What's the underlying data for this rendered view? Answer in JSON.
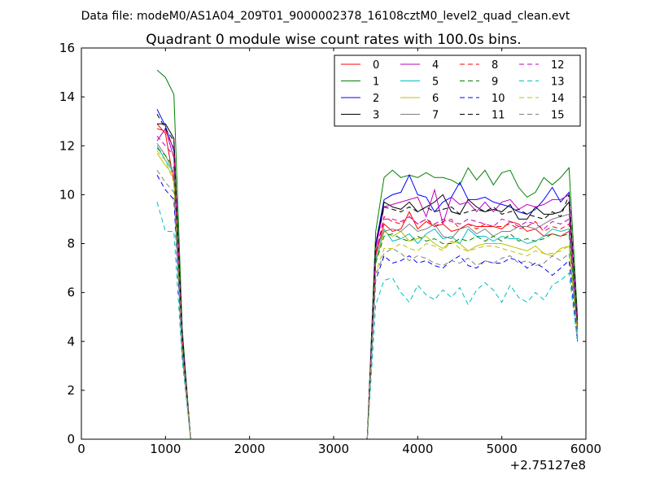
{
  "figure": {
    "suptitle": "Data file: modeM0/AS1A04_209T01_9000002378_16108cztM0_level2_quad_clean.evt",
    "x_offset_label": "+2.75127e8"
  },
  "chart_data": {
    "type": "line",
    "title": "Quadrant 0 module wise count rates with 100.0s bins.",
    "xlabel": "",
    "ylabel": "",
    "xlim": [
      0,
      6000
    ],
    "ylim": [
      0,
      16
    ],
    "xticks": [
      0,
      1000,
      2000,
      3000,
      4000,
      5000,
      6000
    ],
    "yticks": [
      0,
      2,
      4,
      6,
      8,
      10,
      12,
      14,
      16
    ],
    "grid": false,
    "legend": "top-right",
    "x": [
      900,
      1000,
      1100,
      1200,
      1300,
      1400,
      1500,
      1600,
      1700,
      1800,
      1900,
      2000,
      2100,
      2200,
      2300,
      2400,
      2500,
      2600,
      2700,
      2800,
      2900,
      3000,
      3100,
      3200,
      3300,
      3400,
      3500,
      3600,
      3700,
      3800,
      3900,
      4000,
      4100,
      4200,
      4300,
      4400,
      4500,
      4600,
      4700,
      4800,
      4900,
      5000,
      5100,
      5200,
      5300,
      5400,
      5500,
      5600,
      5700,
      5800,
      5900
    ],
    "series": [
      {
        "name": "0",
        "color": "#ff0000",
        "dash": "solid",
        "values": [
          12.9,
          12.5,
          10.5,
          4.0,
          0,
          0,
          0,
          0,
          0,
          0,
          0,
          0,
          0,
          0,
          0,
          0,
          0,
          0,
          0,
          0,
          0,
          0,
          0,
          0,
          0,
          0,
          7.5,
          8.8,
          8.5,
          8.6,
          9.3,
          8.6,
          8.9,
          8.7,
          8.8,
          8.5,
          8.6,
          8.8,
          8.7,
          8.7,
          8.7,
          8.6,
          8.9,
          8.8,
          8.5,
          8.6,
          8.3,
          8.4,
          8.3,
          8.5,
          4.8
        ]
      },
      {
        "name": "1",
        "color": "#008000",
        "dash": "solid",
        "values": [
          15.1,
          14.8,
          14.1,
          4.5,
          0,
          0,
          0,
          0,
          0,
          0,
          0,
          0,
          0,
          0,
          0,
          0,
          0,
          0,
          0,
          0,
          0,
          0,
          0,
          0,
          0,
          0,
          8.5,
          10.7,
          11.0,
          10.7,
          10.8,
          10.7,
          10.9,
          10.7,
          10.7,
          10.6,
          10.4,
          11.1,
          10.6,
          11.0,
          10.4,
          10.9,
          11.0,
          10.3,
          9.9,
          10.1,
          10.7,
          10.4,
          10.7,
          11.1,
          5.0
        ]
      },
      {
        "name": "2",
        "color": "#0000ff",
        "dash": "solid",
        "values": [
          13.5,
          12.8,
          11.8,
          4.2,
          0,
          0,
          0,
          0,
          0,
          0,
          0,
          0,
          0,
          0,
          0,
          0,
          0,
          0,
          0,
          0,
          0,
          0,
          0,
          0,
          0,
          0,
          8.0,
          9.8,
          10.0,
          10.1,
          10.8,
          10.0,
          9.9,
          9.3,
          9.7,
          9.9,
          10.5,
          9.8,
          9.8,
          9.9,
          9.7,
          9.6,
          9.5,
          9.3,
          9.2,
          9.4,
          9.8,
          10.3,
          9.7,
          10.1,
          4.0
        ]
      },
      {
        "name": "3",
        "color": "#000000",
        "dash": "solid",
        "values": [
          12.9,
          12.9,
          12.3,
          4.0,
          0,
          0,
          0,
          0,
          0,
          0,
          0,
          0,
          0,
          0,
          0,
          0,
          0,
          0,
          0,
          0,
          0,
          0,
          0,
          0,
          0,
          0,
          7.8,
          9.7,
          9.5,
          9.4,
          9.7,
          9.3,
          9.5,
          9.7,
          10.0,
          9.3,
          9.2,
          9.8,
          9.5,
          9.3,
          9.4,
          9.3,
          9.6,
          9.0,
          9.0,
          9.5,
          9.2,
          9.2,
          9.3,
          9.7,
          4.5
        ]
      },
      {
        "name": "4",
        "color": "#bf00bf",
        "dash": "solid",
        "values": [
          12.2,
          12.7,
          11.5,
          4.0,
          0,
          0,
          0,
          0,
          0,
          0,
          0,
          0,
          0,
          0,
          0,
          0,
          0,
          0,
          0,
          0,
          0,
          0,
          0,
          0,
          0,
          0,
          7.8,
          9.5,
          9.6,
          9.7,
          9.8,
          9.9,
          9.1,
          10.2,
          8.8,
          9.9,
          9.6,
          9.7,
          9.3,
          9.7,
          9.3,
          9.7,
          9.8,
          9.4,
          9.6,
          9.5,
          9.6,
          9.8,
          9.8,
          10.0,
          4.6
        ]
      },
      {
        "name": "5",
        "color": "#00bfbf",
        "dash": "solid",
        "values": [
          12.0,
          11.4,
          10.9,
          3.8,
          0,
          0,
          0,
          0,
          0,
          0,
          0,
          0,
          0,
          0,
          0,
          0,
          0,
          0,
          0,
          0,
          0,
          0,
          0,
          0,
          0,
          0,
          7.3,
          8.6,
          8.1,
          8.2,
          8.4,
          8.0,
          8.4,
          8.6,
          8.2,
          8.3,
          8.0,
          8.6,
          8.3,
          8.3,
          8.1,
          8.3,
          8.2,
          8.2,
          8.0,
          8.1,
          8.3,
          8.6,
          8.5,
          8.6,
          4.5
        ]
      },
      {
        "name": "6",
        "color": "#bfbf00",
        "dash": "solid",
        "values": [
          11.7,
          11.2,
          10.8,
          3.7,
          0,
          0,
          0,
          0,
          0,
          0,
          0,
          0,
          0,
          0,
          0,
          0,
          0,
          0,
          0,
          0,
          0,
          0,
          0,
          0,
          0,
          0,
          7.2,
          8.5,
          8.3,
          8.5,
          8.1,
          8.2,
          8.3,
          8.0,
          7.8,
          8.1,
          8.0,
          7.7,
          7.9,
          8.0,
          8.0,
          8.0,
          7.9,
          7.8,
          7.7,
          7.9,
          7.6,
          7.5,
          7.8,
          7.9,
          4.2
        ]
      },
      {
        "name": "7",
        "color": "#808080",
        "dash": "solid",
        "values": [
          12.1,
          11.6,
          10.9,
          3.8,
          0,
          0,
          0,
          0,
          0,
          0,
          0,
          0,
          0,
          0,
          0,
          0,
          0,
          0,
          0,
          0,
          0,
          0,
          0,
          0,
          0,
          0,
          7.8,
          8.5,
          8.6,
          8.5,
          8.8,
          8.5,
          8.6,
          8.8,
          8.3,
          8.2,
          8.6,
          8.7,
          8.4,
          8.6,
          8.3,
          8.5,
          8.5,
          8.7,
          8.7,
          8.6,
          8.8,
          9.0,
          9.1,
          9.2,
          4.6
        ]
      },
      {
        "name": "8",
        "color": "#ff0000",
        "dash": "dash",
        "values": [
          12.7,
          12.6,
          11.9,
          4.1,
          0,
          0,
          0,
          0,
          0,
          0,
          0,
          0,
          0,
          0,
          0,
          0,
          0,
          0,
          0,
          0,
          0,
          0,
          0,
          0,
          0,
          0,
          7.6,
          9.1,
          8.9,
          8.8,
          9.1,
          8.8,
          9.0,
          8.7,
          8.9,
          9.0,
          8.6,
          8.8,
          8.6,
          8.8,
          8.7,
          8.7,
          8.8,
          8.6,
          8.7,
          8.9,
          8.5,
          8.7,
          8.6,
          8.8,
          4.7
        ]
      },
      {
        "name": "9",
        "color": "#008000",
        "dash": "dash",
        "values": [
          11.9,
          11.6,
          11.1,
          3.9,
          0,
          0,
          0,
          0,
          0,
          0,
          0,
          0,
          0,
          0,
          0,
          0,
          0,
          0,
          0,
          0,
          0,
          0,
          0,
          0,
          0,
          0,
          7.2,
          8.3,
          8.4,
          8.2,
          8.1,
          8.3,
          8.1,
          8.2,
          8.0,
          8.0,
          8.2,
          8.1,
          8.3,
          8.1,
          8.3,
          8.1,
          8.4,
          8.1,
          8.2,
          8.1,
          8.2,
          8.4,
          8.3,
          8.4,
          4.4
        ]
      },
      {
        "name": "10",
        "color": "#0000ff",
        "dash": "dash",
        "values": [
          10.8,
          10.2,
          9.8,
          3.5,
          0,
          0,
          0,
          0,
          0,
          0,
          0,
          0,
          0,
          0,
          0,
          0,
          0,
          0,
          0,
          0,
          0,
          0,
          0,
          0,
          0,
          0,
          6.5,
          7.5,
          7.2,
          7.3,
          7.5,
          7.2,
          7.3,
          7.1,
          7.0,
          7.3,
          7.5,
          7.1,
          7.0,
          7.3,
          7.2,
          7.2,
          7.4,
          7.3,
          7.0,
          7.2,
          7.0,
          6.7,
          7.0,
          7.3,
          4.0
        ]
      },
      {
        "name": "11",
        "color": "#000000",
        "dash": "dash",
        "values": [
          13.3,
          12.7,
          12.2,
          4.2,
          0,
          0,
          0,
          0,
          0,
          0,
          0,
          0,
          0,
          0,
          0,
          0,
          0,
          0,
          0,
          0,
          0,
          0,
          0,
          0,
          0,
          0,
          8.0,
          9.5,
          9.4,
          9.3,
          9.5,
          9.3,
          9.5,
          9.3,
          9.4,
          9.5,
          9.2,
          9.3,
          9.4,
          9.3,
          9.5,
          9.2,
          9.3,
          9.4,
          9.2,
          9.1,
          9.0,
          9.3,
          9.1,
          10.0,
          4.8
        ]
      },
      {
        "name": "12",
        "color": "#bf00bf",
        "dash": "dash",
        "values": [
          12.4,
          12.0,
          11.6,
          4.0,
          0,
          0,
          0,
          0,
          0,
          0,
          0,
          0,
          0,
          0,
          0,
          0,
          0,
          0,
          0,
          0,
          0,
          0,
          0,
          0,
          0,
          0,
          7.5,
          9.0,
          9.0,
          8.9,
          9.1,
          8.8,
          9.0,
          8.8,
          9.0,
          8.9,
          8.8,
          9.0,
          8.9,
          8.8,
          8.7,
          9.0,
          8.9,
          8.7,
          8.9,
          8.8,
          8.6,
          8.9,
          8.8,
          9.0,
          4.7
        ]
      },
      {
        "name": "13",
        "color": "#00bfbf",
        "dash": "dash",
        "values": [
          9.7,
          8.5,
          8.5,
          3.2,
          0,
          0,
          0,
          0,
          0,
          0,
          0,
          0,
          0,
          0,
          0,
          0,
          0,
          0,
          0,
          0,
          0,
          0,
          0,
          0,
          0,
          0,
          5.5,
          6.5,
          6.6,
          6.0,
          5.6,
          6.3,
          5.9,
          5.7,
          6.1,
          5.8,
          6.2,
          5.5,
          6.1,
          6.4,
          6.1,
          5.6,
          6.3,
          5.8,
          5.6,
          6.0,
          5.7,
          6.3,
          6.5,
          6.8,
          4.0
        ]
      },
      {
        "name": "14",
        "color": "#bfbf00",
        "dash": "dash",
        "values": [
          11.8,
          11.4,
          10.5,
          3.7,
          0,
          0,
          0,
          0,
          0,
          0,
          0,
          0,
          0,
          0,
          0,
          0,
          0,
          0,
          0,
          0,
          0,
          0,
          0,
          0,
          0,
          0,
          6.8,
          7.8,
          7.8,
          8.0,
          7.8,
          7.7,
          8.0,
          7.9,
          7.7,
          8.1,
          7.8,
          7.7,
          7.8,
          7.9,
          7.9,
          7.8,
          7.7,
          7.6,
          7.5,
          7.7,
          7.6,
          7.6,
          7.7,
          7.9,
          4.3
        ]
      },
      {
        "name": "15",
        "color": "#808080",
        "dash": "dash",
        "values": [
          11.0,
          10.5,
          10.1,
          3.5,
          0,
          0,
          0,
          0,
          0,
          0,
          0,
          0,
          0,
          0,
          0,
          0,
          0,
          0,
          0,
          0,
          0,
          0,
          0,
          0,
          0,
          0,
          6.7,
          7.6,
          7.8,
          7.6,
          7.3,
          7.5,
          7.4,
          7.2,
          7.1,
          7.3,
          7.2,
          7.4,
          7.1,
          7.3,
          7.2,
          7.4,
          7.5,
          7.2,
          7.3,
          7.1,
          7.2,
          7.5,
          7.3,
          7.6,
          4.3
        ]
      }
    ]
  }
}
